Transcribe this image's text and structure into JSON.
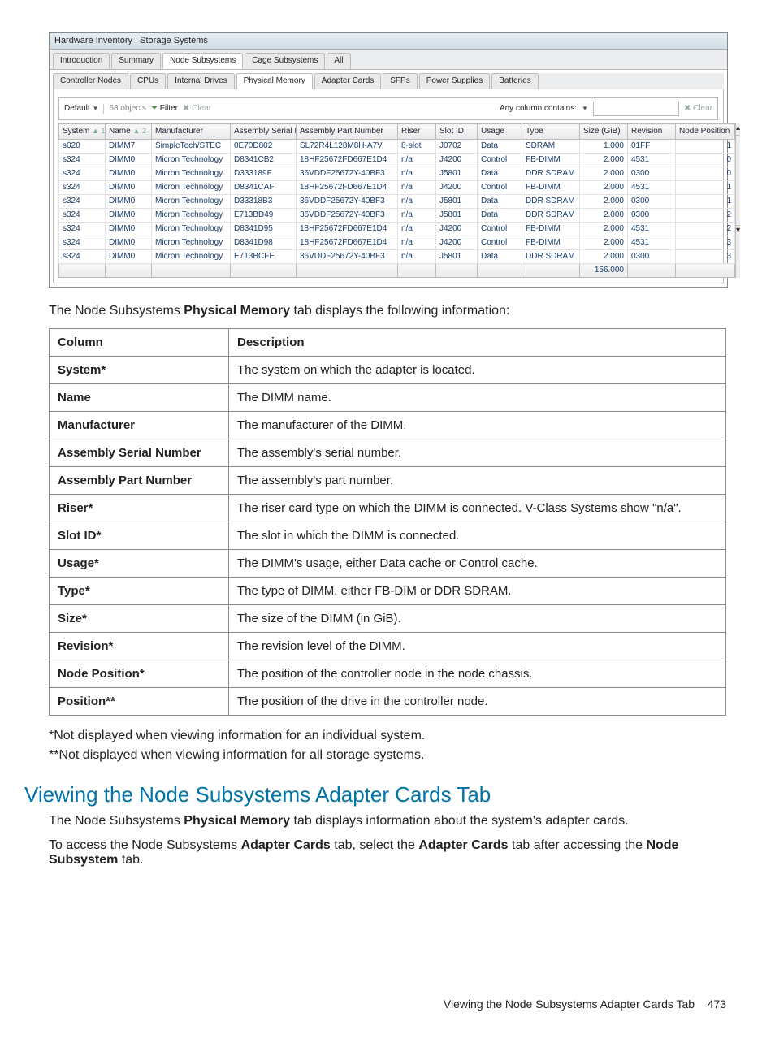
{
  "screenshot": {
    "window_title": "Hardware Inventory : Storage Systems",
    "upper_tabs": [
      "Introduction",
      "Summary",
      "Node Subsystems",
      "Cage Subsystems",
      "All"
    ],
    "upper_tabs_active": "Node Subsystems",
    "lower_tabs": [
      "Controller Nodes",
      "CPUs",
      "Internal Drives",
      "Physical Memory",
      "Adapter Cards",
      "SFPs",
      "Power Supplies",
      "Batteries"
    ],
    "lower_tabs_active": "Physical Memory",
    "toolbar": {
      "default_label": "Default",
      "objects_count": "68 objects",
      "filter_label": "Filter",
      "clear_label": "Clear",
      "search_label": "Any column contains:",
      "clear2_label": "Clear"
    },
    "columns": [
      "System",
      "Name",
      "Manufacturer",
      "Assembly Serial Number",
      "Assembly Part Number",
      "Riser",
      "Slot ID",
      "Usage",
      "Type",
      "Size (GiB)",
      "Revision",
      "Node Position"
    ],
    "col_widths": [
      "48px",
      "48px",
      "88px",
      "72px",
      "116px",
      "38px",
      "42px",
      "46px",
      "62px",
      "50px",
      "50px",
      "64px"
    ],
    "sort": {
      "col1_index": 0,
      "col1_order": "1",
      "col2_index": 1,
      "col2_order": "2"
    },
    "rows": [
      {
        "system": "s020",
        "name": "DIMM7",
        "mfr": "SimpleTech/STEC",
        "asn": "0E70D802",
        "apn": "SL72R4L128M8H-A7V",
        "riser": "8-slot",
        "slot": "J0702",
        "usage": "Data",
        "type": "SDRAM",
        "size": "1.000",
        "rev": "01FF",
        "pos": "1"
      },
      {
        "system": "s324",
        "name": "DIMM0",
        "mfr": "Micron Technology",
        "asn": "D8341CB2",
        "apn": "18HF25672FD667E1D4",
        "riser": "n/a",
        "slot": "J4200",
        "usage": "Control",
        "type": "FB-DIMM",
        "size": "2.000",
        "rev": "4531",
        "pos": "0"
      },
      {
        "system": "s324",
        "name": "DIMM0",
        "mfr": "Micron Technology",
        "asn": "D333189F",
        "apn": "36VDDF25672Y-40BF3",
        "riser": "n/a",
        "slot": "J5801",
        "usage": "Data",
        "type": "DDR SDRAM",
        "size": "2.000",
        "rev": "0300",
        "pos": "0"
      },
      {
        "system": "s324",
        "name": "DIMM0",
        "mfr": "Micron Technology",
        "asn": "D8341CAF",
        "apn": "18HF25672FD667E1D4",
        "riser": "n/a",
        "slot": "J4200",
        "usage": "Control",
        "type": "FB-DIMM",
        "size": "2.000",
        "rev": "4531",
        "pos": "1"
      },
      {
        "system": "s324",
        "name": "DIMM0",
        "mfr": "Micron Technology",
        "asn": "D33318B3",
        "apn": "36VDDF25672Y-40BF3",
        "riser": "n/a",
        "slot": "J5801",
        "usage": "Data",
        "type": "DDR SDRAM",
        "size": "2.000",
        "rev": "0300",
        "pos": "1"
      },
      {
        "system": "s324",
        "name": "DIMM0",
        "mfr": "Micron Technology",
        "asn": "E713BD49",
        "apn": "36VDDF25672Y-40BF3",
        "riser": "n/a",
        "slot": "J5801",
        "usage": "Data",
        "type": "DDR SDRAM",
        "size": "2.000",
        "rev": "0300",
        "pos": "2"
      },
      {
        "system": "s324",
        "name": "DIMM0",
        "mfr": "Micron Technology",
        "asn": "D8341D95",
        "apn": "18HF25672FD667E1D4",
        "riser": "n/a",
        "slot": "J4200",
        "usage": "Control",
        "type": "FB-DIMM",
        "size": "2.000",
        "rev": "4531",
        "pos": "2"
      },
      {
        "system": "s324",
        "name": "DIMM0",
        "mfr": "Micron Technology",
        "asn": "D8341D98",
        "apn": "18HF25672FD667E1D4",
        "riser": "n/a",
        "slot": "J4200",
        "usage": "Control",
        "type": "FB-DIMM",
        "size": "2.000",
        "rev": "4531",
        "pos": "3"
      },
      {
        "system": "s324",
        "name": "DIMM0",
        "mfr": "Micron Technology",
        "asn": "E713BCFE",
        "apn": "36VDDF25672Y-40BF3",
        "riser": "n/a",
        "slot": "J5801",
        "usage": "Data",
        "type": "DDR SDRAM",
        "size": "2.000",
        "rev": "0300",
        "pos": "3"
      }
    ],
    "footer_total": "156.000"
  },
  "body": {
    "lead": "The Node Subsystems <b>Physical Memory</b> tab displays the following information:",
    "table_header": [
      "Column",
      "Description"
    ],
    "table_rows": [
      [
        "System*",
        "The system on which the adapter is located."
      ],
      [
        "Name",
        "The DIMM name."
      ],
      [
        "Manufacturer",
        "The manufacturer of the DIMM."
      ],
      [
        "Assembly Serial Number",
        "The assembly's serial number."
      ],
      [
        "Assembly Part Number",
        "The assembly's part number."
      ],
      [
        "Riser*",
        "The riser card type on which the DIMM is connected. V-Class Systems show \"n/a\"."
      ],
      [
        "Slot ID*",
        "The slot in which the DIMM is connected."
      ],
      [
        "Usage*",
        "The DIMM's usage, either Data cache or Control cache."
      ],
      [
        "Type*",
        "The type of DIMM, either FB-DIM or DDR SDRAM."
      ],
      [
        "Size*",
        "The size of the DIMM (in GiB)."
      ],
      [
        "Revision*",
        "The revision level of the DIMM."
      ],
      [
        "Node Position*",
        "The position of the controller node in the node chassis."
      ],
      [
        "Position**",
        "The position of the drive in the controller node."
      ]
    ],
    "note1": "*Not displayed when viewing information for an individual system.",
    "note2": "**Not displayed when viewing information for all storage systems.",
    "section_heading": "Viewing the Node Subsystems Adapter Cards Tab",
    "para1": "The Node Subsystems <b>Physical Memory</b> tab displays information about the system's adapter cards.",
    "para2": "To access the Node Subsystems <b>Adapter Cards</b> tab, select the <b>Adapter Cards</b> tab after accessing the <b>Node Subsystem</b> tab.",
    "footer": "Viewing the Node Subsystems Adapter Cards Tab",
    "page_no": "473"
  }
}
